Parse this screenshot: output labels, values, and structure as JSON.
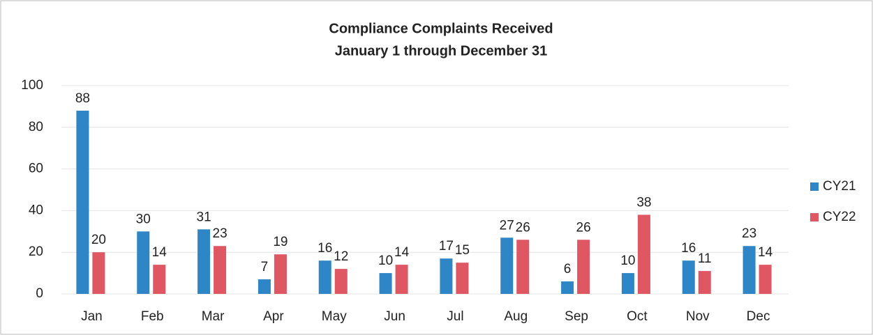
{
  "chart_data": {
    "type": "bar",
    "title": "Compliance Complaints Received",
    "subtitle": "January 1 through December 31",
    "categories": [
      "Jan",
      "Feb",
      "Mar",
      "Apr",
      "May",
      "Jun",
      "Jul",
      "Aug",
      "Sep",
      "Oct",
      "Nov",
      "Dec"
    ],
    "series": [
      {
        "name": "CY21",
        "color": "#2f86c6",
        "values": [
          88,
          30,
          31,
          7,
          16,
          10,
          17,
          27,
          6,
          10,
          16,
          23
        ]
      },
      {
        "name": "CY22",
        "color": "#de5763",
        "values": [
          20,
          14,
          23,
          19,
          12,
          14,
          15,
          26,
          26,
          38,
          11,
          14
        ]
      }
    ],
    "ylim": [
      0,
      100
    ],
    "yticks": [
      0,
      20,
      40,
      60,
      80,
      100
    ],
    "grid": true,
    "legend": "right"
  }
}
